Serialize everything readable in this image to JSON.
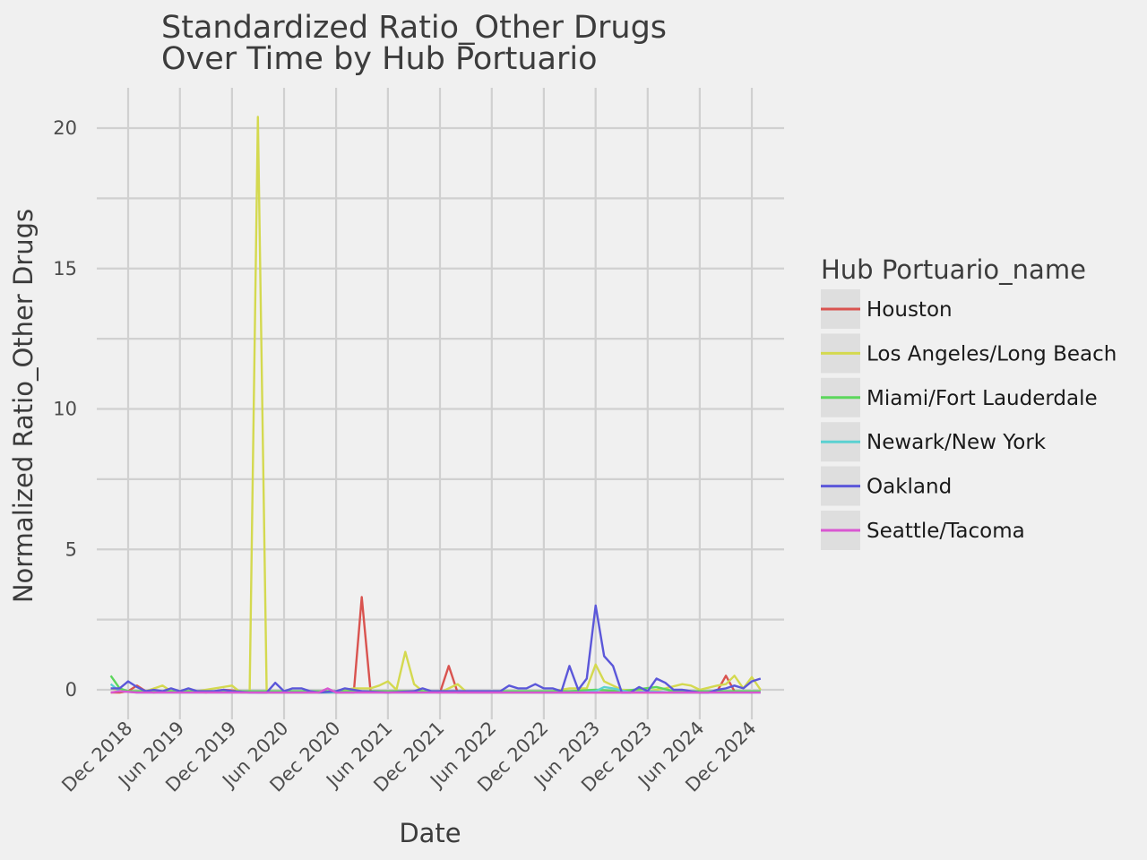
{
  "chart_data": {
    "type": "line",
    "title_lines": [
      "Standardized Ratio_Other Drugs",
      "Over Time by Hub Portuario"
    ],
    "xlabel": "Date",
    "ylabel": "Normalized Ratio_Other Drugs",
    "legend_title": "Hub Portuario_name",
    "legend_position": "right",
    "grid": true,
    "x_range": [
      "2018-10-01",
      "2025-01-01"
    ],
    "ylim": [
      -1.0,
      21.4
    ],
    "y_ticks": [
      0,
      5,
      10,
      15,
      20
    ],
    "x_ticks": [
      {
        "date": "2018-12-01",
        "label": "Dec 2018"
      },
      {
        "date": "2019-06-01",
        "label": "Jun 2019"
      },
      {
        "date": "2019-12-01",
        "label": "Dec 2019"
      },
      {
        "date": "2020-06-01",
        "label": "Jun 2020"
      },
      {
        "date": "2020-12-01",
        "label": "Dec 2020"
      },
      {
        "date": "2021-06-01",
        "label": "Jun 2021"
      },
      {
        "date": "2021-12-01",
        "label": "Dec 2021"
      },
      {
        "date": "2022-06-01",
        "label": "Jun 2022"
      },
      {
        "date": "2022-12-01",
        "label": "Dec 2022"
      },
      {
        "date": "2023-06-01",
        "label": "Jun 2023"
      },
      {
        "date": "2023-12-01",
        "label": "Dec 2023"
      },
      {
        "date": "2024-06-01",
        "label": "Jun 2024"
      },
      {
        "date": "2024-12-01",
        "label": "Dec 2024"
      }
    ],
    "series": [
      {
        "name": "Houston",
        "color": "#d9534f",
        "points": [
          [
            "2018-10-01",
            -0.1
          ],
          [
            "2018-11-01",
            -0.1
          ],
          [
            "2018-12-01",
            -0.05
          ],
          [
            "2019-01-01",
            0.15
          ],
          [
            "2019-02-01",
            -0.05
          ],
          [
            "2019-03-01",
            -0.1
          ],
          [
            "2019-05-01",
            -0.05
          ],
          [
            "2019-07-01",
            -0.05
          ],
          [
            "2019-09-01",
            -0.1
          ],
          [
            "2019-11-01",
            0.0
          ],
          [
            "2020-01-01",
            -0.05
          ],
          [
            "2020-03-01",
            -0.1
          ],
          [
            "2020-06-01",
            -0.1
          ],
          [
            "2020-09-01",
            -0.1
          ],
          [
            "2020-12-01",
            -0.1
          ],
          [
            "2021-02-01",
            -0.1
          ],
          [
            "2021-03-01",
            3.3
          ],
          [
            "2021-04-01",
            -0.05
          ],
          [
            "2021-07-01",
            -0.05
          ],
          [
            "2021-09-01",
            -0.05
          ],
          [
            "2021-12-01",
            -0.1
          ],
          [
            "2022-01-01",
            0.85
          ],
          [
            "2022-02-01",
            -0.1
          ],
          [
            "2022-06-01",
            -0.1
          ],
          [
            "2022-12-01",
            -0.1
          ],
          [
            "2023-06-01",
            -0.1
          ],
          [
            "2023-12-01",
            -0.1
          ],
          [
            "2024-06-01",
            -0.1
          ],
          [
            "2024-08-01",
            -0.05
          ],
          [
            "2024-09-01",
            0.5
          ],
          [
            "2024-10-01",
            -0.05
          ],
          [
            "2024-12-01",
            -0.1
          ]
        ]
      },
      {
        "name": "Los Angeles/Long Beach",
        "color": "#d4d94f",
        "points": [
          [
            "2018-10-01",
            0.05
          ],
          [
            "2018-12-01",
            -0.05
          ],
          [
            "2019-02-01",
            -0.05
          ],
          [
            "2019-04-01",
            0.15
          ],
          [
            "2019-05-01",
            -0.05
          ],
          [
            "2019-08-01",
            -0.05
          ],
          [
            "2019-12-01",
            0.15
          ],
          [
            "2020-01-01",
            -0.1
          ],
          [
            "2020-02-01",
            -0.1
          ],
          [
            "2020-03-01",
            20.4
          ],
          [
            "2020-04-01",
            -0.1
          ],
          [
            "2020-06-01",
            -0.1
          ],
          [
            "2020-09-01",
            -0.1
          ],
          [
            "2020-12-01",
            -0.05
          ],
          [
            "2021-02-01",
            0.05
          ],
          [
            "2021-04-01",
            0.05
          ],
          [
            "2021-05-01",
            0.15
          ],
          [
            "2021-06-01",
            0.3
          ],
          [
            "2021-07-01",
            0.0
          ],
          [
            "2021-08-01",
            1.35
          ],
          [
            "2021-09-01",
            0.2
          ],
          [
            "2021-10-01",
            -0.05
          ],
          [
            "2021-12-01",
            -0.1
          ],
          [
            "2022-02-01",
            0.2
          ],
          [
            "2022-03-01",
            -0.05
          ],
          [
            "2022-06-01",
            -0.1
          ],
          [
            "2022-12-01",
            -0.1
          ],
          [
            "2023-03-01",
            0.05
          ],
          [
            "2023-05-01",
            0.05
          ],
          [
            "2023-06-01",
            0.9
          ],
          [
            "2023-07-01",
            0.3
          ],
          [
            "2023-08-01",
            0.15
          ],
          [
            "2023-09-01",
            0.0
          ],
          [
            "2023-12-01",
            -0.05
          ],
          [
            "2024-02-01",
            0.05
          ],
          [
            "2024-04-01",
            0.2
          ],
          [
            "2024-05-01",
            0.15
          ],
          [
            "2024-06-01",
            0.0
          ],
          [
            "2024-08-01",
            0.15
          ],
          [
            "2024-09-01",
            0.2
          ],
          [
            "2024-10-01",
            0.5
          ],
          [
            "2024-11-01",
            0.05
          ],
          [
            "2024-12-01",
            0.45
          ],
          [
            "2025-01-01",
            0.0
          ]
        ]
      },
      {
        "name": "Miami/Fort Lauderdale",
        "color": "#5cd65c",
        "points": [
          [
            "2018-10-01",
            0.5
          ],
          [
            "2018-11-01",
            0.05
          ],
          [
            "2018-12-01",
            -0.05
          ],
          [
            "2019-02-01",
            -0.05
          ],
          [
            "2019-06-01",
            -0.05
          ],
          [
            "2019-12-01",
            -0.05
          ],
          [
            "2020-06-01",
            -0.05
          ],
          [
            "2020-12-01",
            -0.05
          ],
          [
            "2021-06-01",
            -0.05
          ],
          [
            "2021-12-01",
            -0.05
          ],
          [
            "2022-06-01",
            -0.05
          ],
          [
            "2022-12-01",
            -0.05
          ],
          [
            "2023-03-01",
            -0.05
          ],
          [
            "2023-06-01",
            0.0
          ],
          [
            "2023-09-01",
            -0.05
          ],
          [
            "2024-01-01",
            0.1
          ],
          [
            "2024-03-01",
            -0.05
          ],
          [
            "2024-06-01",
            -0.05
          ],
          [
            "2024-12-01",
            -0.05
          ],
          [
            "2025-01-01",
            -0.05
          ]
        ]
      },
      {
        "name": "Newark/New York",
        "color": "#5bd1d1",
        "points": [
          [
            "2018-10-01",
            0.2
          ],
          [
            "2018-11-01",
            -0.05
          ],
          [
            "2019-01-01",
            -0.1
          ],
          [
            "2019-06-01",
            -0.1
          ],
          [
            "2019-12-01",
            -0.1
          ],
          [
            "2020-06-01",
            -0.1
          ],
          [
            "2020-12-01",
            -0.1
          ],
          [
            "2021-06-01",
            -0.1
          ],
          [
            "2021-12-01",
            -0.1
          ],
          [
            "2022-06-01",
            -0.1
          ],
          [
            "2022-12-01",
            -0.1
          ],
          [
            "2023-04-01",
            -0.1
          ],
          [
            "2023-06-01",
            -0.05
          ],
          [
            "2023-07-01",
            0.1
          ],
          [
            "2023-08-01",
            0.05
          ],
          [
            "2023-10-01",
            -0.1
          ],
          [
            "2023-12-01",
            -0.05
          ],
          [
            "2024-03-01",
            -0.1
          ],
          [
            "2024-06-01",
            -0.1
          ],
          [
            "2024-12-01",
            -0.1
          ],
          [
            "2025-01-01",
            -0.1
          ]
        ]
      },
      {
        "name": "Oakland",
        "color": "#5b57d9",
        "points": [
          [
            "2018-10-01",
            0.05
          ],
          [
            "2018-11-01",
            0.05
          ],
          [
            "2018-12-01",
            0.3
          ],
          [
            "2019-01-01",
            0.1
          ],
          [
            "2019-02-01",
            -0.05
          ],
          [
            "2019-03-01",
            0.0
          ],
          [
            "2019-04-01",
            -0.05
          ],
          [
            "2019-05-01",
            0.05
          ],
          [
            "2019-06-01",
            -0.05
          ],
          [
            "2019-07-01",
            0.05
          ],
          [
            "2019-08-01",
            -0.05
          ],
          [
            "2019-09-01",
            -0.05
          ],
          [
            "2019-10-01",
            -0.05
          ],
          [
            "2019-11-01",
            0.0
          ],
          [
            "2019-12-01",
            -0.05
          ],
          [
            "2020-02-01",
            -0.1
          ],
          [
            "2020-04-01",
            -0.1
          ],
          [
            "2020-05-01",
            0.25
          ],
          [
            "2020-06-01",
            -0.05
          ],
          [
            "2020-07-01",
            0.05
          ],
          [
            "2020-08-01",
            0.05
          ],
          [
            "2020-09-01",
            -0.05
          ],
          [
            "2020-10-01",
            -0.1
          ],
          [
            "2020-12-01",
            -0.05
          ],
          [
            "2021-01-01",
            0.05
          ],
          [
            "2021-02-01",
            0.0
          ],
          [
            "2021-03-01",
            -0.05
          ],
          [
            "2021-06-01",
            -0.1
          ],
          [
            "2021-09-01",
            -0.05
          ],
          [
            "2021-10-01",
            0.05
          ],
          [
            "2021-11-01",
            -0.05
          ],
          [
            "2021-12-01",
            -0.05
          ],
          [
            "2022-02-01",
            -0.05
          ],
          [
            "2022-06-01",
            -0.05
          ],
          [
            "2022-07-01",
            -0.05
          ],
          [
            "2022-08-01",
            0.15
          ],
          [
            "2022-09-01",
            0.05
          ],
          [
            "2022-10-01",
            0.05
          ],
          [
            "2022-11-01",
            0.2
          ],
          [
            "2022-12-01",
            0.05
          ],
          [
            "2023-01-01",
            0.05
          ],
          [
            "2023-02-01",
            -0.05
          ],
          [
            "2023-03-01",
            0.85
          ],
          [
            "2023-04-01",
            0.0
          ],
          [
            "2023-05-01",
            0.4
          ],
          [
            "2023-06-01",
            3.0
          ],
          [
            "2023-07-01",
            1.2
          ],
          [
            "2023-08-01",
            0.85
          ],
          [
            "2023-09-01",
            -0.1
          ],
          [
            "2023-10-01",
            -0.1
          ],
          [
            "2023-11-01",
            0.1
          ],
          [
            "2023-12-01",
            -0.05
          ],
          [
            "2024-01-01",
            0.4
          ],
          [
            "2024-02-01",
            0.25
          ],
          [
            "2024-03-01",
            0.0
          ],
          [
            "2024-04-01",
            0.0
          ],
          [
            "2024-05-01",
            -0.05
          ],
          [
            "2024-06-01",
            -0.1
          ],
          [
            "2024-07-01",
            -0.1
          ],
          [
            "2024-08-01",
            0.0
          ],
          [
            "2024-09-01",
            0.05
          ],
          [
            "2024-10-01",
            0.15
          ],
          [
            "2024-11-01",
            0.05
          ],
          [
            "2024-12-01",
            0.3
          ],
          [
            "2025-01-01",
            0.4
          ]
        ]
      },
      {
        "name": "Seattle/Tacoma",
        "color": "#d957d1",
        "points": [
          [
            "2018-10-01",
            -0.1
          ],
          [
            "2018-11-01",
            -0.05
          ],
          [
            "2019-01-01",
            -0.1
          ],
          [
            "2019-06-01",
            -0.1
          ],
          [
            "2019-12-01",
            -0.1
          ],
          [
            "2020-06-01",
            -0.1
          ],
          [
            "2020-10-01",
            -0.1
          ],
          [
            "2020-11-01",
            0.05
          ],
          [
            "2020-12-01",
            -0.1
          ],
          [
            "2021-06-01",
            -0.1
          ],
          [
            "2021-12-01",
            -0.1
          ],
          [
            "2022-06-01",
            -0.1
          ],
          [
            "2022-12-01",
            -0.1
          ],
          [
            "2023-06-01",
            -0.1
          ],
          [
            "2023-12-01",
            -0.1
          ],
          [
            "2024-06-01",
            -0.1
          ],
          [
            "2024-12-01",
            -0.1
          ],
          [
            "2025-01-01",
            -0.1
          ]
        ]
      }
    ]
  }
}
